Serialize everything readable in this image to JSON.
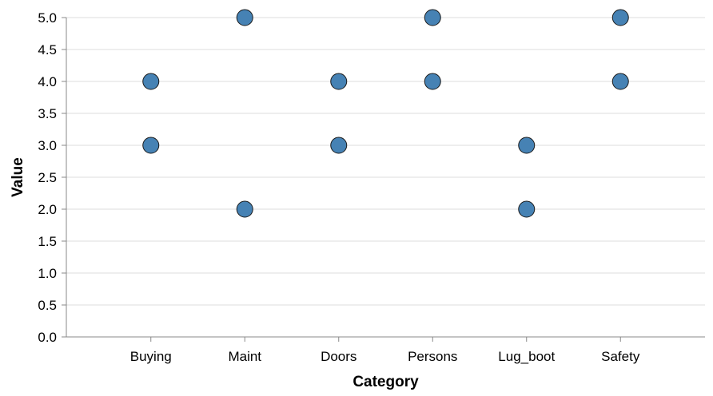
{
  "chart_data": {
    "type": "scatter",
    "title": "",
    "xlabel": "Category",
    "ylabel": "Value",
    "categories": [
      "Buying",
      "Maint",
      "Doors",
      "Persons",
      "Lug_boot",
      "Safety"
    ],
    "ylim": [
      0,
      5
    ],
    "yticks": [
      "0.0",
      "0.5",
      "1.0",
      "1.5",
      "2.0",
      "2.5",
      "3.0",
      "3.5",
      "4.0",
      "4.5",
      "5.0"
    ],
    "grid": true,
    "point_color": "#4682b4",
    "points": [
      {
        "x": "Buying",
        "y": 4
      },
      {
        "x": "Buying",
        "y": 3
      },
      {
        "x": "Maint",
        "y": 5
      },
      {
        "x": "Maint",
        "y": 2
      },
      {
        "x": "Doors",
        "y": 4
      },
      {
        "x": "Doors",
        "y": 3
      },
      {
        "x": "Persons",
        "y": 5
      },
      {
        "x": "Persons",
        "y": 4
      },
      {
        "x": "Lug_boot",
        "y": 3
      },
      {
        "x": "Lug_boot",
        "y": 2
      },
      {
        "x": "Safety",
        "y": 5
      },
      {
        "x": "Safety",
        "y": 4
      }
    ]
  }
}
